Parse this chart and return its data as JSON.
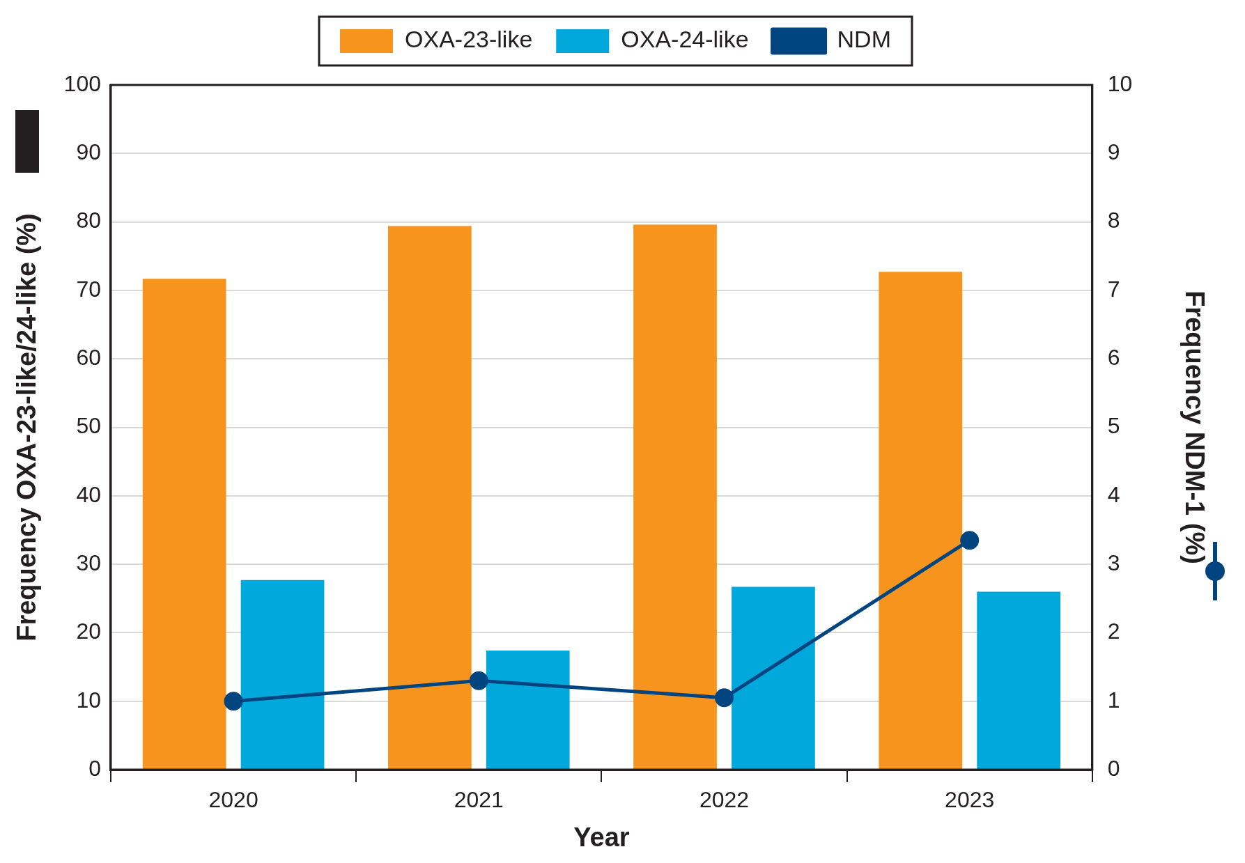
{
  "chart_data": {
    "type": "bar",
    "xlabel": "Year",
    "ylabel": "Frequency OXA-23-like/24-like (%)",
    "y2label": "Frequency NDM-1 (%)",
    "categories": [
      "2020",
      "2021",
      "2022",
      "2023"
    ],
    "series": [
      {
        "name": "OXA-23-like",
        "color": "#f7941d",
        "values": [
          71.7,
          79.4,
          79.6,
          72.7
        ]
      },
      {
        "name": "OXA-24-like",
        "color": "#00a8dc",
        "values": [
          27.7,
          17.4,
          26.7,
          26.0
        ]
      },
      {
        "name": "NDM",
        "type": "line",
        "axis": "y2",
        "color": "#004580",
        "values": [
          1.0,
          1.3,
          1.05,
          3.35
        ]
      }
    ],
    "ylim": [
      0,
      100
    ],
    "yticks": [
      0,
      10,
      20,
      30,
      40,
      50,
      60,
      70,
      80,
      90,
      100
    ],
    "y2lim": [
      0,
      10
    ],
    "y2ticks": [
      0,
      1,
      2,
      3,
      4,
      5,
      6,
      7,
      8,
      9,
      10
    ],
    "grid": "y",
    "legend": "top",
    "marker": "circle",
    "line_style": "solid"
  }
}
